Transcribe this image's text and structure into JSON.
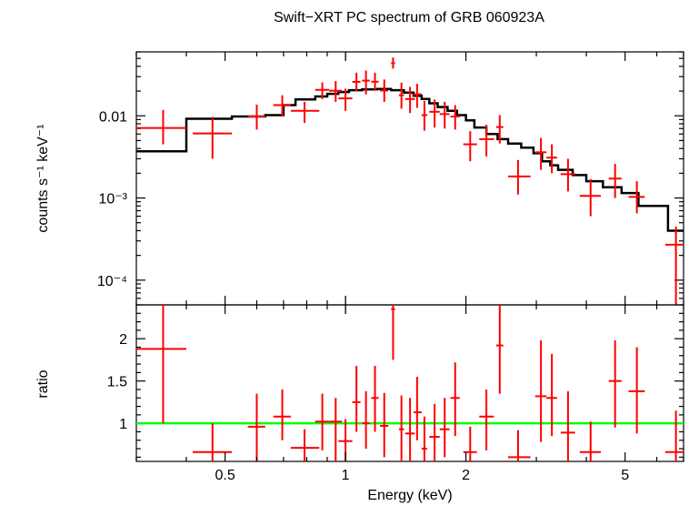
{
  "chart_data": {
    "type": "scatter",
    "title": "Swift−XRT PC spectrum of GRB 060923A",
    "xlabel": "Energy (keV)",
    "x_scale": "log",
    "xlim": [
      0.3,
      7.0
    ],
    "x_ticks": [
      {
        "value": 0.5,
        "label": "0.5"
      },
      {
        "value": 1,
        "label": "1"
      },
      {
        "value": 2,
        "label": "2"
      },
      {
        "value": 5,
        "label": "5"
      }
    ],
    "top_panel": {
      "ylabel": "counts s⁻¹ keV⁻¹",
      "y_scale": "log",
      "ylim": [
        5e-05,
        0.06
      ],
      "y_ticks": [
        {
          "value": 0.01,
          "label": "0.01"
        },
        {
          "value": 0.001,
          "label": "10⁻³"
        },
        {
          "value": 0.0001,
          "label": "10⁻⁴"
        }
      ],
      "series": [
        {
          "type": "errorbar",
          "color": "#ff0000",
          "points": [
            {
              "x": 0.35,
              "xlo": 0.3,
              "xhi": 0.4,
              "y": 0.0071,
              "ylo": 0.0045,
              "yhi": 0.0118
            },
            {
              "x": 0.465,
              "xlo": 0.415,
              "xhi": 0.52,
              "y": 0.0061,
              "ylo": 0.003,
              "yhi": 0.0097
            },
            {
              "x": 0.6,
              "xlo": 0.57,
              "xhi": 0.63,
              "y": 0.0098,
              "ylo": 0.0068,
              "yhi": 0.0137
            },
            {
              "x": 0.695,
              "xlo": 0.66,
              "xhi": 0.73,
              "y": 0.0135,
              "ylo": 0.0098,
              "yhi": 0.0178
            },
            {
              "x": 0.79,
              "xlo": 0.73,
              "xhi": 0.86,
              "y": 0.0115,
              "ylo": 0.0082,
              "yhi": 0.0148
            },
            {
              "x": 0.875,
              "xlo": 0.84,
              "xhi": 0.91,
              "y": 0.0207,
              "ylo": 0.016,
              "yhi": 0.0255
            },
            {
              "x": 0.945,
              "xlo": 0.91,
              "xhi": 0.98,
              "y": 0.0202,
              "ylo": 0.0148,
              "yhi": 0.0265
            },
            {
              "x": 1.0,
              "xlo": 0.96,
              "xhi": 1.04,
              "y": 0.0163,
              "ylo": 0.0115,
              "yhi": 0.0214
            },
            {
              "x": 1.065,
              "xlo": 1.04,
              "xhi": 1.09,
              "y": 0.0259,
              "ylo": 0.0198,
              "yhi": 0.0335
            },
            {
              "x": 1.125,
              "xlo": 1.1,
              "xhi": 1.15,
              "y": 0.0268,
              "ylo": 0.0182,
              "yhi": 0.0356
            },
            {
              "x": 1.185,
              "xlo": 1.16,
              "xhi": 1.21,
              "y": 0.026,
              "ylo": 0.0202,
              "yhi": 0.0335
            },
            {
              "x": 1.25,
              "xlo": 1.22,
              "xhi": 1.28,
              "y": 0.0203,
              "ylo": 0.0148,
              "yhi": 0.0277
            },
            {
              "x": 1.315,
              "xlo": 1.3,
              "xhi": 1.33,
              "y": 0.0437,
              "ylo": 0.0375,
              "yhi": 0.0512
            },
            {
              "x": 1.38,
              "xlo": 1.36,
              "xhi": 1.4,
              "y": 0.0178,
              "ylo": 0.0122,
              "yhi": 0.0253
            },
            {
              "x": 1.45,
              "xlo": 1.41,
              "xhi": 1.49,
              "y": 0.016,
              "ylo": 0.0108,
              "yhi": 0.0225
            },
            {
              "x": 1.51,
              "xlo": 1.48,
              "xhi": 1.55,
              "y": 0.0183,
              "ylo": 0.0125,
              "yhi": 0.0245
            },
            {
              "x": 1.575,
              "xlo": 1.55,
              "xhi": 1.6,
              "y": 0.0102,
              "ylo": 0.0066,
              "yhi": 0.0152
            },
            {
              "x": 1.67,
              "xlo": 1.62,
              "xhi": 1.72,
              "y": 0.0112,
              "ylo": 0.0072,
              "yhi": 0.0158
            },
            {
              "x": 1.77,
              "xlo": 1.72,
              "xhi": 1.82,
              "y": 0.0105,
              "ylo": 0.007,
              "yhi": 0.0148
            },
            {
              "x": 1.88,
              "xlo": 1.83,
              "xhi": 1.93,
              "y": 0.0098,
              "ylo": 0.0068,
              "yhi": 0.0135
            },
            {
              "x": 2.05,
              "xlo": 1.97,
              "xhi": 2.13,
              "y": 0.0045,
              "ylo": 0.0028,
              "yhi": 0.0065
            },
            {
              "x": 2.25,
              "xlo": 2.16,
              "xhi": 2.35,
              "y": 0.0052,
              "ylo": 0.0032,
              "yhi": 0.0078
            },
            {
              "x": 2.43,
              "xlo": 2.38,
              "xhi": 2.48,
              "y": 0.0073,
              "ylo": 0.0046,
              "yhi": 0.0102
            },
            {
              "x": 2.7,
              "xlo": 2.55,
              "xhi": 2.9,
              "y": 0.00183,
              "ylo": 0.0011,
              "yhi": 0.0029
            },
            {
              "x": 3.08,
              "xlo": 2.98,
              "xhi": 3.18,
              "y": 0.0036,
              "ylo": 0.0022,
              "yhi": 0.0054
            },
            {
              "x": 3.28,
              "xlo": 3.18,
              "xhi": 3.38,
              "y": 0.0031,
              "ylo": 0.002,
              "yhi": 0.0045
            },
            {
              "x": 3.6,
              "xlo": 3.45,
              "xhi": 3.75,
              "y": 0.00195,
              "ylo": 0.0012,
              "yhi": 0.003
            },
            {
              "x": 4.1,
              "xlo": 3.85,
              "xhi": 4.35,
              "y": 0.00106,
              "ylo": 0.0006,
              "yhi": 0.0017
            },
            {
              "x": 4.72,
              "xlo": 4.55,
              "xhi": 4.9,
              "y": 0.00172,
              "ylo": 0.001,
              "yhi": 0.0026
            },
            {
              "x": 5.35,
              "xlo": 5.1,
              "xhi": 5.6,
              "y": 0.00103,
              "ylo": 0.00065,
              "yhi": 0.0016
            },
            {
              "x": 6.7,
              "xlo": 6.3,
              "xhi": 7.0,
              "y": 0.00027,
              "ylo": 5e-05,
              "yhi": 0.00045
            }
          ]
        },
        {
          "type": "step",
          "color": "#000000",
          "edges": [
            0.3,
            0.4,
            0.52,
            0.63,
            0.7,
            0.75,
            0.84,
            0.9,
            0.96,
            1.02,
            1.1,
            1.2,
            1.3,
            1.4,
            1.48,
            1.55,
            1.62,
            1.7,
            1.8,
            1.9,
            2.0,
            2.1,
            2.25,
            2.4,
            2.55,
            2.75,
            2.95,
            3.1,
            3.25,
            3.4,
            3.7,
            4.0,
            4.4,
            4.9,
            5.4,
            6.4,
            7.0
          ],
          "values": [
            0.0037,
            0.0092,
            0.0098,
            0.0102,
            0.0135,
            0.0158,
            0.0172,
            0.0185,
            0.0195,
            0.0205,
            0.021,
            0.0212,
            0.0205,
            0.0192,
            0.0175,
            0.016,
            0.0142,
            0.0128,
            0.0115,
            0.0102,
            0.0088,
            0.0072,
            0.006,
            0.0052,
            0.0046,
            0.0041,
            0.0035,
            0.0028,
            0.0025,
            0.0022,
            0.0019,
            0.0016,
            0.00135,
            0.00115,
            0.0008,
            0.0004
          ]
        }
      ]
    },
    "bottom_panel": {
      "ylabel": "ratio",
      "ylim": [
        0.55,
        2.4
      ],
      "y_ticks": [
        {
          "value": 1,
          "label": "1"
        },
        {
          "value": 1.5,
          "label": "1.5"
        },
        {
          "value": 2,
          "label": "2"
        }
      ],
      "reference_line": {
        "y": 1,
        "color": "#00ff00"
      },
      "series": [
        {
          "type": "errorbar",
          "color": "#ff0000",
          "points": [
            {
              "x": 0.35,
              "xlo": 0.3,
              "xhi": 0.4,
              "y": 1.88,
              "ylo": 1.0,
              "yhi": 2.4
            },
            {
              "x": 0.465,
              "xlo": 0.415,
              "xhi": 0.52,
              "y": 0.66,
              "ylo": 0.55,
              "yhi": 1.0
            },
            {
              "x": 0.6,
              "xlo": 0.57,
              "xhi": 0.63,
              "y": 0.96,
              "ylo": 0.55,
              "yhi": 1.35
            },
            {
              "x": 0.695,
              "xlo": 0.66,
              "xhi": 0.73,
              "y": 1.08,
              "ylo": 0.8,
              "yhi": 1.4
            },
            {
              "x": 0.79,
              "xlo": 0.73,
              "xhi": 0.86,
              "y": 0.71,
              "ylo": 0.55,
              "yhi": 0.93
            },
            {
              "x": 0.875,
              "xlo": 0.84,
              "xhi": 0.91,
              "y": 1.02,
              "ylo": 0.68,
              "yhi": 1.35
            },
            {
              "x": 0.945,
              "xlo": 0.91,
              "xhi": 0.98,
              "y": 1.02,
              "ylo": 0.55,
              "yhi": 1.3
            },
            {
              "x": 1.0,
              "xlo": 0.96,
              "xhi": 1.04,
              "y": 0.79,
              "ylo": 0.55,
              "yhi": 1.05
            },
            {
              "x": 1.065,
              "xlo": 1.04,
              "xhi": 1.09,
              "y": 1.25,
              "ylo": 0.9,
              "yhi": 1.68
            },
            {
              "x": 1.125,
              "xlo": 1.1,
              "xhi": 1.15,
              "y": 1.0,
              "ylo": 0.7,
              "yhi": 1.38
            },
            {
              "x": 1.185,
              "xlo": 1.16,
              "xhi": 1.21,
              "y": 1.3,
              "ylo": 0.9,
              "yhi": 1.68
            },
            {
              "x": 1.25,
              "xlo": 1.22,
              "xhi": 1.28,
              "y": 0.97,
              "ylo": 0.6,
              "yhi": 1.36
            },
            {
              "x": 1.315,
              "xlo": 1.3,
              "xhi": 1.33,
              "y": 2.35,
              "ylo": 1.75,
              "yhi": 2.4
            },
            {
              "x": 1.38,
              "xlo": 1.36,
              "xhi": 1.4,
              "y": 0.93,
              "ylo": 0.55,
              "yhi": 1.33
            },
            {
              "x": 1.45,
              "xlo": 1.41,
              "xhi": 1.49,
              "y": 0.88,
              "ylo": 0.55,
              "yhi": 1.3
            },
            {
              "x": 1.51,
              "xlo": 1.48,
              "xhi": 1.55,
              "y": 1.13,
              "ylo": 0.8,
              "yhi": 1.55
            },
            {
              "x": 1.575,
              "xlo": 1.55,
              "xhi": 1.6,
              "y": 0.7,
              "ylo": 0.55,
              "yhi": 1.08
            },
            {
              "x": 1.67,
              "xlo": 1.62,
              "xhi": 1.72,
              "y": 0.84,
              "ylo": 0.55,
              "yhi": 1.23
            },
            {
              "x": 1.77,
              "xlo": 1.72,
              "xhi": 1.82,
              "y": 0.93,
              "ylo": 0.6,
              "yhi": 1.3
            },
            {
              "x": 1.88,
              "xlo": 1.83,
              "xhi": 1.93,
              "y": 1.3,
              "ylo": 0.85,
              "yhi": 1.72
            },
            {
              "x": 2.05,
              "xlo": 1.97,
              "xhi": 2.13,
              "y": 0.66,
              "ylo": 0.55,
              "yhi": 0.96
            },
            {
              "x": 2.25,
              "xlo": 2.16,
              "xhi": 2.35,
              "y": 1.08,
              "ylo": 0.68,
              "yhi": 1.4
            },
            {
              "x": 2.43,
              "xlo": 2.38,
              "xhi": 2.48,
              "y": 1.92,
              "ylo": 1.35,
              "yhi": 2.4
            },
            {
              "x": 2.7,
              "xlo": 2.55,
              "xhi": 2.9,
              "y": 0.6,
              "ylo": 0.55,
              "yhi": 0.92
            },
            {
              "x": 3.08,
              "xlo": 2.98,
              "xhi": 3.18,
              "y": 1.32,
              "ylo": 0.78,
              "yhi": 1.98
            },
            {
              "x": 3.28,
              "xlo": 3.18,
              "xhi": 3.38,
              "y": 1.3,
              "ylo": 0.85,
              "yhi": 1.82
            },
            {
              "x": 3.6,
              "xlo": 3.45,
              "xhi": 3.75,
              "y": 0.89,
              "ylo": 0.55,
              "yhi": 1.38
            },
            {
              "x": 4.1,
              "xlo": 3.85,
              "xhi": 4.35,
              "y": 0.66,
              "ylo": 0.55,
              "yhi": 1.02
            },
            {
              "x": 4.72,
              "xlo": 4.55,
              "xhi": 4.9,
              "y": 1.5,
              "ylo": 0.95,
              "yhi": 1.98
            },
            {
              "x": 5.35,
              "xlo": 5.1,
              "xhi": 5.6,
              "y": 1.38,
              "ylo": 0.88,
              "yhi": 1.9
            },
            {
              "x": 6.7,
              "xlo": 6.3,
              "xhi": 7.0,
              "y": 0.66,
              "ylo": 0.55,
              "yhi": 1.15
            }
          ]
        }
      ]
    }
  }
}
